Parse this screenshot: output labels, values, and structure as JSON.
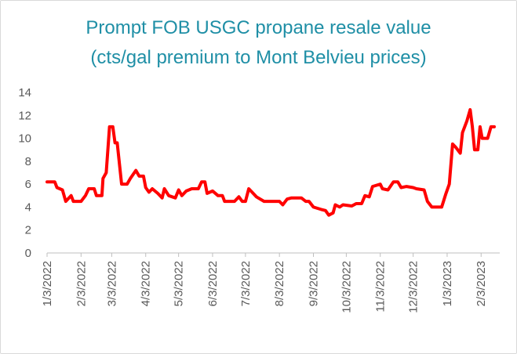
{
  "chart_data": {
    "type": "line",
    "title": "Prompt FOB USGC propane resale value",
    "subtitle": "(cts/gal premium to Mont Belvieu prices)",
    "xlabel": "",
    "ylabel": "",
    "ylim": [
      0,
      14
    ],
    "yticks": [
      0,
      2,
      4,
      6,
      8,
      10,
      12,
      14
    ],
    "xlim": [
      "2022-01-03",
      "2023-02-20"
    ],
    "xtick_labels": [
      "1/3/2022",
      "2/3/2022",
      "3/3/2022",
      "4/3/2022",
      "5/3/2022",
      "6/3/2022",
      "7/3/2022",
      "8/3/2022",
      "9/3/2022",
      "10/3/2022",
      "11/3/2022",
      "12/3/2022",
      "1/3/2023",
      "2/3/2023"
    ],
    "xtick_dates": [
      "2022-01-03",
      "2022-02-03",
      "2022-03-03",
      "2022-04-03",
      "2022-05-03",
      "2022-06-03",
      "2022-07-03",
      "2022-08-03",
      "2022-09-03",
      "2022-10-03",
      "2022-11-03",
      "2022-12-03",
      "2023-01-03",
      "2023-02-03"
    ],
    "grid": false,
    "legend": "none",
    "series": [
      {
        "color": "#ff0000",
        "points": [
          [
            "2022-01-03",
            6.2
          ],
          [
            "2022-01-10",
            6.2
          ],
          [
            "2022-01-12",
            5.7
          ],
          [
            "2022-01-17",
            5.5
          ],
          [
            "2022-01-20",
            4.5
          ],
          [
            "2022-01-25",
            5.0
          ],
          [
            "2022-01-27",
            4.5
          ],
          [
            "2022-02-03",
            4.5
          ],
          [
            "2022-02-07",
            5.0
          ],
          [
            "2022-02-10",
            5.6
          ],
          [
            "2022-02-15",
            5.6
          ],
          [
            "2022-02-17",
            5.0
          ],
          [
            "2022-02-22",
            5.0
          ],
          [
            "2022-02-23",
            6.5
          ],
          [
            "2022-02-26",
            7.0
          ],
          [
            "2022-03-01",
            11.0
          ],
          [
            "2022-03-04",
            11.0
          ],
          [
            "2022-03-06",
            9.6
          ],
          [
            "2022-03-08",
            9.6
          ],
          [
            "2022-03-12",
            6.0
          ],
          [
            "2022-03-17",
            6.0
          ],
          [
            "2022-03-20",
            6.5
          ],
          [
            "2022-03-25",
            7.2
          ],
          [
            "2022-03-28",
            6.7
          ],
          [
            "2022-04-01",
            6.7
          ],
          [
            "2022-04-03",
            5.7
          ],
          [
            "2022-04-06",
            5.3
          ],
          [
            "2022-04-09",
            5.6
          ],
          [
            "2022-04-14",
            5.2
          ],
          [
            "2022-04-18",
            4.8
          ],
          [
            "2022-04-20",
            5.6
          ],
          [
            "2022-04-24",
            5.0
          ],
          [
            "2022-04-30",
            4.8
          ],
          [
            "2022-05-03",
            5.5
          ],
          [
            "2022-05-06",
            5.0
          ],
          [
            "2022-05-10",
            5.4
          ],
          [
            "2022-05-15",
            5.6
          ],
          [
            "2022-05-21",
            5.6
          ],
          [
            "2022-05-24",
            6.2
          ],
          [
            "2022-05-27",
            6.2
          ],
          [
            "2022-05-29",
            5.2
          ],
          [
            "2022-06-03",
            5.4
          ],
          [
            "2022-06-08",
            5.0
          ],
          [
            "2022-06-12",
            5.0
          ],
          [
            "2022-06-14",
            4.5
          ],
          [
            "2022-06-23",
            4.5
          ],
          [
            "2022-06-27",
            4.9
          ],
          [
            "2022-06-30",
            4.5
          ],
          [
            "2022-07-03",
            4.5
          ],
          [
            "2022-07-06",
            5.6
          ],
          [
            "2022-07-10",
            5.2
          ],
          [
            "2022-07-13",
            4.9
          ],
          [
            "2022-07-20",
            4.5
          ],
          [
            "2022-08-03",
            4.5
          ],
          [
            "2022-08-06",
            4.2
          ],
          [
            "2022-08-10",
            4.7
          ],
          [
            "2022-08-14",
            4.8
          ],
          [
            "2022-08-23",
            4.8
          ],
          [
            "2022-08-27",
            4.5
          ],
          [
            "2022-08-30",
            4.5
          ],
          [
            "2022-09-03",
            4.0
          ],
          [
            "2022-09-10",
            3.8
          ],
          [
            "2022-09-14",
            3.7
          ],
          [
            "2022-09-17",
            3.3
          ],
          [
            "2022-09-21",
            3.5
          ],
          [
            "2022-09-23",
            4.2
          ],
          [
            "2022-09-27",
            4.0
          ],
          [
            "2022-09-30",
            4.2
          ],
          [
            "2022-10-08",
            4.1
          ],
          [
            "2022-10-12",
            4.3
          ],
          [
            "2022-10-17",
            4.3
          ],
          [
            "2022-10-20",
            5.0
          ],
          [
            "2022-10-24",
            4.9
          ],
          [
            "2022-10-27",
            5.8
          ],
          [
            "2022-11-03",
            6.0
          ],
          [
            "2022-11-05",
            5.6
          ],
          [
            "2022-11-10",
            5.5
          ],
          [
            "2022-11-15",
            6.2
          ],
          [
            "2022-11-19",
            6.2
          ],
          [
            "2022-11-22",
            5.7
          ],
          [
            "2022-11-27",
            5.8
          ],
          [
            "2022-12-03",
            5.7
          ],
          [
            "2022-12-06",
            5.6
          ],
          [
            "2022-12-13",
            5.5
          ],
          [
            "2022-12-16",
            4.5
          ],
          [
            "2022-12-20",
            4.0
          ],
          [
            "2022-12-29",
            4.0
          ],
          [
            "2023-01-02",
            5.2
          ],
          [
            "2023-01-05",
            6.0
          ],
          [
            "2023-01-08",
            9.5
          ],
          [
            "2023-01-11",
            9.2
          ],
          [
            "2023-01-15",
            8.7
          ],
          [
            "2023-01-17",
            10.5
          ],
          [
            "2023-01-21",
            11.5
          ],
          [
            "2023-01-24",
            12.5
          ],
          [
            "2023-01-26",
            11.0
          ],
          [
            "2023-01-28",
            9.0
          ],
          [
            "2023-01-31",
            9.0
          ],
          [
            "2023-02-02",
            11.0
          ],
          [
            "2023-02-04",
            10.0
          ],
          [
            "2023-02-09",
            10.0
          ],
          [
            "2023-02-12",
            11.0
          ],
          [
            "2023-02-15",
            11.0
          ]
        ]
      }
    ]
  }
}
